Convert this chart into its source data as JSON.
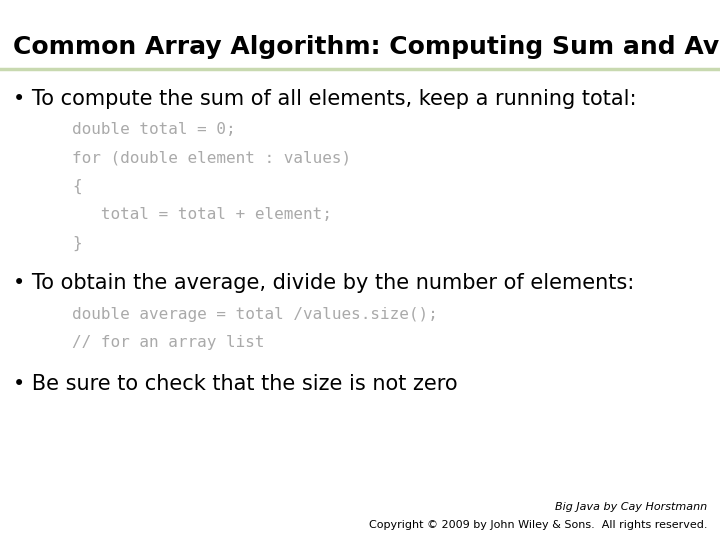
{
  "title": "Common Array Algorithm: Computing Sum and Average",
  "title_color": "#000000",
  "title_fontsize": 18,
  "background_color": "#ffffff",
  "header_line_color": "#c8d9b0",
  "bullet1_text": "To compute the sum of all elements, keep a running total:",
  "code1": [
    "double total = 0;",
    "for (double element : values)",
    "{",
    "   total = total + element;",
    "}"
  ],
  "bullet2_text": "To obtain the average, divide by the number of elements:",
  "code2": [
    "double average = total /values.size();",
    "// for an array list"
  ],
  "bullet3_text": "Be sure to check that the size is not zero",
  "bullet_fontsize": 15,
  "code_fontsize": 11.5,
  "code_color": "#aaaaaa",
  "footer1": "Big Java by Cay Horstmann",
  "footer2": "Copyright © 2009 by John Wiley & Sons.  All rights reserved.",
  "footer_fontsize": 8
}
